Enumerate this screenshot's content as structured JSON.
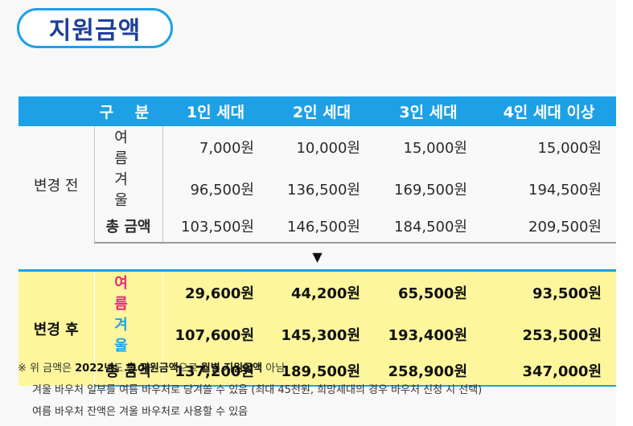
{
  "title": "지원금액",
  "table": {
    "headers": [
      "구 분",
      "1인 세대",
      "2인 세대",
      "3인 세대",
      "4인 세대 이상"
    ],
    "before": {
      "group": "변경 전",
      "rows": [
        {
          "label": "여 름",
          "values": [
            "7,000원",
            "10,000원",
            "15,000원",
            "15,000원"
          ]
        },
        {
          "label": "겨 울",
          "values": [
            "96,500원",
            "136,500원",
            "169,500원",
            "194,500원"
          ]
        },
        {
          "label": "총 금액",
          "values": [
            "103,500원",
            "146,500원",
            "184,500원",
            "209,500원"
          ]
        }
      ]
    },
    "arrow": "▼",
    "after": {
      "group": "변경 후",
      "rows": [
        {
          "label": "여 름",
          "color": "#e8257a",
          "values": [
            "29,600원",
            "44,200원",
            "65,500원",
            "93,500원"
          ]
        },
        {
          "label": "겨 울",
          "color": "#1ea0e6",
          "values": [
            "107,600원",
            "145,300원",
            "193,400원",
            "253,500원"
          ]
        },
        {
          "label": "총 금액",
          "color": "#111111",
          "values": [
            "137,200원",
            "189,500원",
            "258,900원",
            "347,000원"
          ]
        }
      ]
    }
  },
  "notes": {
    "line1": {
      "prefix": "※ 위 금액은 ",
      "b1": "2022년",
      "mid1": "도 ",
      "b2": "총 지원금액",
      "mid2": "으로 ",
      "b3": "월별 지원금액",
      "suffix": " 아님"
    },
    "line2": "겨울 바우처 일부를 여름 바우처로 당겨쓸 수 있음 (최대 45천원, 희망세대의 경우 바우처 신청 시 선택)",
    "line3": "여름 바우처 잔액은 겨울 바우처로 사용할 수 있음"
  }
}
